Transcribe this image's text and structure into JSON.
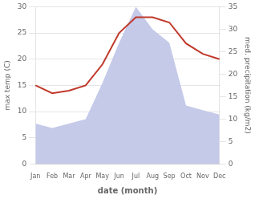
{
  "chart_data": {
    "type": "line",
    "categories": [
      "Jan",
      "Feb",
      "Mar",
      "Apr",
      "May",
      "Jun",
      "Jul",
      "Aug",
      "Sep",
      "Oct",
      "Nov",
      "Dec"
    ],
    "series": [
      {
        "type": "area",
        "color": "#c5cae9",
        "axis": "y2",
        "values": [
          9,
          8,
          9,
          10,
          18,
          27,
          35,
          30,
          27,
          13,
          12,
          11
        ]
      },
      {
        "type": "line",
        "color": "#c0392b",
        "values": [
          15,
          13.5,
          14,
          15,
          19,
          25,
          28,
          28,
          27,
          23,
          21,
          20
        ]
      }
    ],
    "xlabel": "date (month)",
    "ylabel": "max temp (C)",
    "y2label": "med. precipitation (kg/m2)",
    "ylim": [
      0,
      30
    ],
    "yticks": [
      0,
      5,
      10,
      15,
      20,
      25,
      30
    ],
    "y2lim": [
      0,
      35
    ],
    "y2ticks": [
      0,
      5,
      10,
      15,
      20,
      25,
      30,
      35
    ],
    "grid": true
  }
}
